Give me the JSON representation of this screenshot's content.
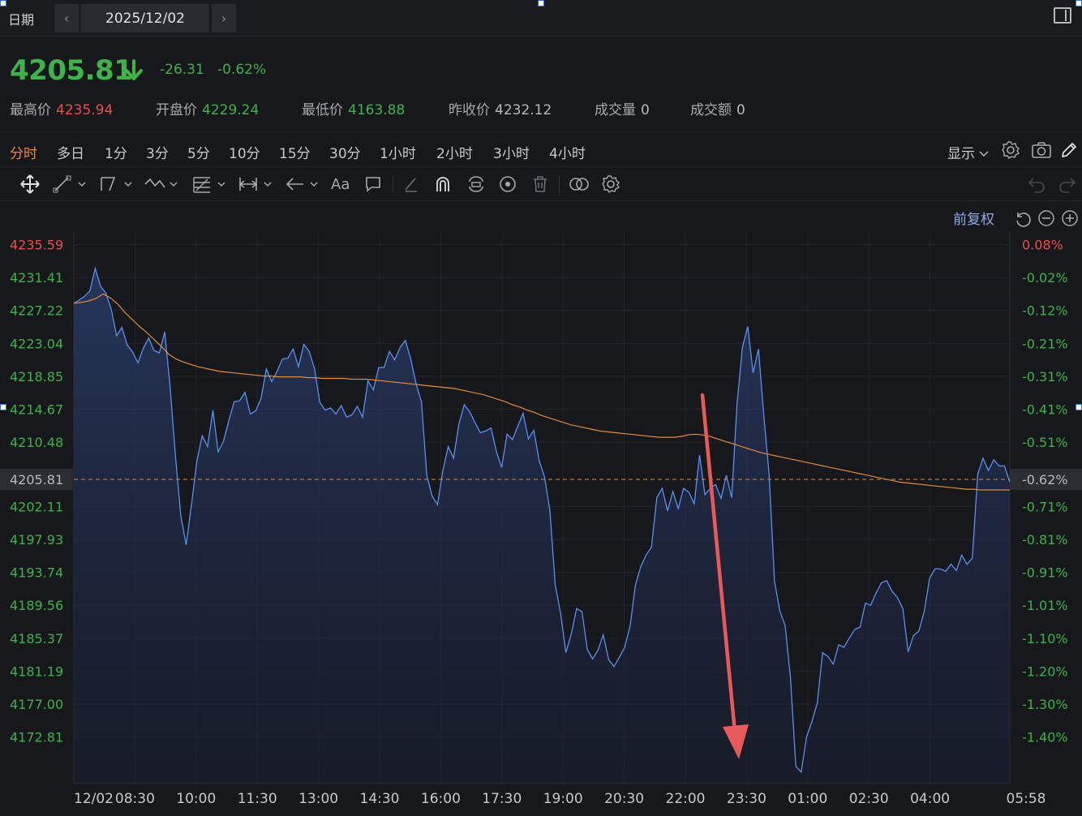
{
  "header": {
    "date_label": "日期",
    "date_value": "2025/12/02",
    "prev_symbol": "‹",
    "next_symbol": "›"
  },
  "quote": {
    "price": "4205.81",
    "change": "-26.31",
    "change_pct": "-0.62%",
    "stats": [
      {
        "label": "最高价",
        "value": "4235.94",
        "color": "#e8514a"
      },
      {
        "label": "开盘价",
        "value": "4229.24",
        "color": "#3db34a"
      },
      {
        "label": "最低价",
        "value": "4163.88",
        "color": "#3db34a"
      },
      {
        "label": "昨收价",
        "value": "4232.12",
        "color": "#b8b9bc"
      },
      {
        "label": "成交量",
        "value": "0",
        "color": "#b8b9bc"
      },
      {
        "label": "成交额",
        "value": "0",
        "color": "#b8b9bc"
      }
    ]
  },
  "periods": {
    "items": [
      "分时",
      "多日",
      "1分",
      "3分",
      "5分",
      "10分",
      "15分",
      "30分",
      "1小时",
      "2小时",
      "3小时",
      "4小时"
    ],
    "active": "分时",
    "display_label": "显示"
  },
  "toolbar": {
    "text_tool": "Aa",
    "icons": [
      "move-icon",
      "line-icon",
      "polyline-icon",
      "wave-icon",
      "fib-icon",
      "measure-icon",
      "arrow-icon",
      "text-icon",
      "comment-icon",
      "eraser-icon",
      "magnet-icon",
      "lock-icon",
      "eye-icon",
      "trash-icon",
      "compare-icon",
      "settings-icon",
      "undo-icon",
      "redo-icon"
    ]
  },
  "adjust": {
    "label": "前复权"
  },
  "colors": {
    "up": "#e8514a",
    "down": "#3db34a",
    "price_line": "#5b8ff0",
    "avg_line": "#e38a38",
    "arrow": "#e85a5a",
    "accent": "#ec8b35"
  },
  "chart_data": {
    "type": "area",
    "y_ticks": [
      "4235.59",
      "4231.41",
      "4227.22",
      "4223.04",
      "4218.85",
      "4214.67",
      "4210.48",
      "4205.81",
      "4202.11",
      "4197.93",
      "4193.74",
      "4189.56",
      "4185.37",
      "4181.19",
      "4177.00",
      "4172.81"
    ],
    "pct_ticks": [
      "0.08%",
      "-0.02%",
      "-0.12%",
      "-0.21%",
      "-0.31%",
      "-0.41%",
      "-0.51%",
      "-0.62%",
      "-0.71%",
      "-0.81%",
      "-0.91%",
      "-1.01%",
      "-1.10%",
      "-1.20%",
      "-1.30%",
      "-1.40%"
    ],
    "x_ticks": [
      "12/02",
      "08:30",
      "10:00",
      "11:30",
      "13:00",
      "14:30",
      "16:00",
      "17:30",
      "19:00",
      "20:30",
      "22:00",
      "23:30",
      "01:00",
      "02:30",
      "04:00",
      "05:58"
    ],
    "current_price": 4205.81,
    "prev_close": 4232.12,
    "ylim": [
      4168.6,
      4239.8
    ],
    "series": [
      {
        "kind": "price",
        "values": [
          4230.6,
          4231.0,
          4231.5,
          4232.2,
          4235.1,
          4232.8,
          4231.9,
          4229.8,
          4226.4,
          4227.5,
          4225.2,
          4224.3,
          4222.9,
          4224.8,
          4226.1,
          4224.5,
          4224.2,
          4226.9,
          4219.8,
          4210.9,
          4203.2,
          4199.4,
          4204.6,
          4210.2,
          4213.5,
          4212.1,
          4216.8,
          4211.4,
          4212.8,
          4215.5,
          4217.9,
          4218.0,
          4219.1,
          4216.3,
          4216.7,
          4218.3,
          4222.1,
          4220.5,
          4221.8,
          4223.4,
          4223.5,
          4224.7,
          4222.4,
          4225.3,
          4224.4,
          4222.2,
          4217.8,
          4216.8,
          4217.1,
          4216.3,
          4217.4,
          4215.9,
          4216.2,
          4217.3,
          4215.9,
          4220.6,
          4219.4,
          4222.3,
          4222.3,
          4224.4,
          4223.3,
          4224.9,
          4225.8,
          4223.4,
          4220.2,
          4217.9,
          4208.4,
          4205.7,
          4204.6,
          4209.0,
          4212.1,
          4210.6,
          4215.0,
          4217.5,
          4216.6,
          4215.2,
          4213.9,
          4214.1,
          4214.5,
          4211.5,
          4209.4,
          4213.7,
          4213.0,
          4214.7,
          4216.4,
          4213.1,
          4214.2,
          4210.3,
          4208.2,
          4203.9,
          4194.3,
          4190.6,
          4185.5,
          4187.9,
          4191.2,
          4190.8,
          4185.9,
          4184.7,
          4185.8,
          4187.8,
          4184.6,
          4183.7,
          4184.9,
          4186.2,
          4188.9,
          4194.2,
          4196.6,
          4198.1,
          4199.1,
          4205.5,
          4206.7,
          4203.8,
          4206.3,
          4204.1,
          4206.7,
          4206.2,
          4204.7,
          4211.0,
          4205.9,
          4206.7,
          4207.2,
          4205.4,
          4208.4,
          4205.5,
          4217.6,
          4224.9,
          4227.6,
          4221.6,
          4224.7,
          4216.1,
          4208.4,
          4194.7,
          4190.9,
          4189.0,
          4182.2,
          4170.8,
          4170.1,
          4174.6,
          4176.6,
          4179.0,
          4185.5,
          4185.0,
          4184.0,
          4186.5,
          4186.2,
          4187.4,
          4188.5,
          4188.8,
          4191.9,
          4191.6,
          4193.2,
          4194.5,
          4194.8,
          4193.4,
          4192.6,
          4191.2,
          4185.6,
          4187.7,
          4188.3,
          4190.8,
          4195.1,
          4196.3,
          4196.3,
          4196.0,
          4196.9,
          4196.1,
          4198.1,
          4196.9,
          4197.7,
          4208.5,
          4210.6,
          4209.0,
          4210.4,
          4209.6,
          4209.6,
          4207.5
        ]
      },
      {
        "kind": "average",
        "values": [
          4230.6,
          4230.7,
          4230.9,
          4231.2,
          4231.8,
          4231.3,
          4230.5,
          4229.4,
          4228.5,
          4227.6,
          4226.8,
          4225.9,
          4225.0,
          4224.0,
          4223.4,
          4223.0,
          4222.7,
          4222.4,
          4222.2,
          4222.0,
          4221.8,
          4221.7,
          4221.6,
          4221.5,
          4221.4,
          4221.3,
          4221.2,
          4221.2,
          4221.1,
          4221.1,
          4221.1,
          4221.1,
          4221.0,
          4221.0,
          4220.9,
          4220.9,
          4220.9,
          4220.9,
          4220.8,
          4220.8,
          4220.8,
          4220.7,
          4220.6,
          4220.5,
          4220.4,
          4220.3,
          4220.2,
          4220.1,
          4220.0,
          4219.9,
          4219.8,
          4219.7,
          4219.6,
          4219.4,
          4219.2,
          4219.0,
          4218.8,
          4218.5,
          4218.2,
          4217.9,
          4217.5,
          4217.2,
          4216.8,
          4216.5,
          4216.1,
          4215.8,
          4215.5,
          4215.2,
          4214.9,
          4214.7,
          4214.5,
          4214.3,
          4214.1,
          4214.0,
          4213.9,
          4213.8,
          4213.7,
          4213.6,
          4213.5,
          4213.4,
          4213.3,
          4213.3,
          4213.3,
          4213.4,
          4213.6,
          4213.7,
          4213.6,
          4213.4,
          4213.1,
          4212.8,
          4212.5,
          4212.2,
          4211.9,
          4211.6,
          4211.3,
          4211.1,
          4210.9,
          4210.7,
          4210.5,
          4210.3,
          4210.1,
          4209.9,
          4209.7,
          4209.5,
          4209.3,
          4209.1,
          4208.9,
          4208.7,
          4208.5,
          4208.3,
          4208.1,
          4207.9,
          4207.7,
          4207.5,
          4207.4,
          4207.3,
          4207.2,
          4207.1,
          4207.0,
          4206.9,
          4206.8,
          4206.7,
          4206.6,
          4206.6,
          4206.5,
          4206.5,
          4206.5,
          4206.5,
          4206.5
        ]
      }
    ]
  }
}
